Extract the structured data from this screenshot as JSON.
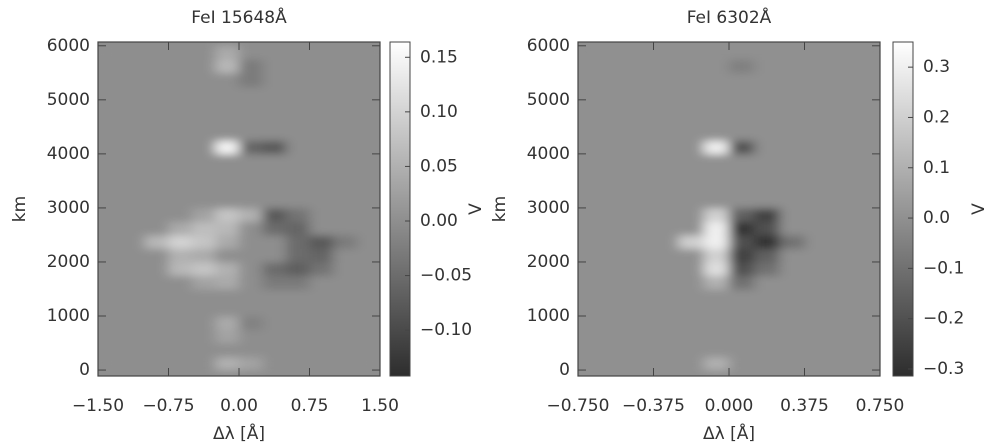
{
  "chart_data": [
    {
      "type": "heatmap",
      "title": "FeI 15648Å",
      "x_label": "Δλ [Å]",
      "y_label": "km",
      "colorbar_label": "V",
      "xlim": [
        -1.5,
        1.5
      ],
      "ylim": [
        -110,
        6070
      ],
      "xticks": [
        {
          "value": -1.5,
          "label": "−1.50"
        },
        {
          "value": -0.75,
          "label": "−0.75"
        },
        {
          "value": 0,
          "label": "0.00"
        },
        {
          "value": 0.75,
          "label": "0.75"
        },
        {
          "value": 1.5,
          "label": "1.50"
        }
      ],
      "yticks": [
        0,
        1000,
        2000,
        3000,
        4000,
        5000,
        6000
      ],
      "clim": [
        -0.142,
        0.164
      ],
      "cticks": [
        {
          "value": 0.15,
          "label": "0.15"
        },
        {
          "value": 0.1,
          "label": "0.10"
        },
        {
          "value": 0.05,
          "label": "0.05"
        },
        {
          "value": 0,
          "label": "0.00"
        },
        {
          "value": -0.05,
          "label": "−0.05"
        },
        {
          "value": -0.1,
          "label": "−0.10"
        }
      ],
      "x": [
        -1.375,
        -1.125,
        -0.875,
        -0.625,
        -0.375,
        -0.125,
        0.125,
        0.375,
        0.625,
        0.875,
        1.125,
        1.375
      ],
      "y": [
        125,
        375,
        625,
        875,
        1125,
        1375,
        1625,
        1875,
        2125,
        2375,
        2625,
        2875,
        3125,
        3375,
        3625,
        3875,
        4125,
        4375,
        4625,
        4875,
        5125,
        5375,
        5625,
        5875
      ],
      "z": [
        [
          0,
          0,
          0,
          0,
          0,
          0.05,
          0.03,
          0,
          0,
          0,
          0,
          0
        ],
        [
          0,
          0,
          0,
          0,
          0,
          0,
          0,
          0,
          0,
          0,
          0,
          0
        ],
        [
          0,
          0,
          0,
          0,
          0,
          0.03,
          0,
          0,
          0,
          0,
          0,
          0
        ],
        [
          0,
          0,
          0,
          0,
          0,
          0.04,
          -0.02,
          0,
          0,
          0,
          0,
          0
        ],
        [
          0,
          0,
          0,
          0,
          0,
          0,
          0,
          0,
          0,
          0,
          0,
          0
        ],
        [
          0,
          0,
          0,
          0,
          0,
          0,
          0,
          0,
          0,
          0,
          0,
          0
        ],
        [
          0,
          0,
          0,
          0,
          0.03,
          0.04,
          0,
          -0.03,
          -0.03,
          0,
          0,
          0
        ],
        [
          0,
          0,
          0,
          0.06,
          0.08,
          0.05,
          0,
          -0.05,
          -0.07,
          -0.04,
          0,
          0
        ],
        [
          0,
          0,
          0,
          0.05,
          0.04,
          0,
          0,
          0,
          -0.05,
          -0.06,
          0,
          0
        ],
        [
          0,
          0,
          0.06,
          0.1,
          0.08,
          0.04,
          0,
          0,
          -0.05,
          -0.08,
          -0.03,
          0
        ],
        [
          0,
          0,
          0,
          0.04,
          0.07,
          0.06,
          0,
          -0.05,
          -0.06,
          0,
          0,
          0
        ],
        [
          0,
          0,
          0,
          0,
          0.03,
          0.08,
          0.05,
          -0.08,
          -0.04,
          0,
          0,
          0
        ],
        [
          0,
          0,
          0,
          0,
          0,
          0,
          0,
          0,
          0,
          0,
          0,
          0
        ],
        [
          0,
          0,
          0,
          0,
          0,
          0,
          0,
          0,
          0,
          0,
          0,
          0
        ],
        [
          0,
          0,
          0,
          0,
          0,
          0,
          0,
          0,
          0,
          0,
          0,
          0
        ],
        [
          0,
          0,
          0,
          0,
          0,
          0,
          0,
          0,
          0,
          0,
          0,
          0
        ],
        [
          0,
          0,
          0,
          0,
          0,
          0.15,
          -0.06,
          -0.08,
          0,
          0,
          0,
          0
        ],
        [
          0,
          0,
          0,
          0,
          0,
          0,
          0,
          0,
          0,
          0,
          0,
          0
        ],
        [
          0,
          0,
          0,
          0,
          0,
          0,
          0,
          0,
          0,
          0,
          0,
          0
        ],
        [
          0,
          0,
          0,
          0,
          0,
          0,
          0,
          0,
          0,
          0,
          0,
          0
        ],
        [
          0,
          0,
          0,
          0,
          0,
          0,
          0,
          0,
          0,
          0,
          0,
          0
        ],
        [
          0,
          0,
          0,
          0,
          0,
          0,
          -0.03,
          0,
          0,
          0,
          0,
          0
        ],
        [
          0,
          0,
          0,
          0,
          0,
          0.06,
          -0.03,
          0,
          0,
          0,
          0,
          0
        ],
        [
          0,
          0,
          0,
          0,
          0,
          0.04,
          0,
          0,
          0,
          0,
          0,
          0
        ]
      ]
    },
    {
      "type": "heatmap",
      "title": "FeI 6302Å",
      "x_label": "Δλ [Å]",
      "y_label": "km",
      "colorbar_label": "V",
      "xlim": [
        -0.75,
        0.75
      ],
      "ylim": [
        -110,
        6070
      ],
      "xticks": [
        {
          "value": -0.75,
          "label": "−0.750"
        },
        {
          "value": -0.375,
          "label": "−0.375"
        },
        {
          "value": 0,
          "label": "0.000"
        },
        {
          "value": 0.375,
          "label": "0.375"
        },
        {
          "value": 0.75,
          "label": "0.750"
        }
      ],
      "yticks": [
        0,
        1000,
        2000,
        3000,
        4000,
        5000,
        6000
      ],
      "clim": [
        -0.314,
        0.35
      ],
      "cticks": [
        0.3,
        0.2,
        0.1,
        {
          "value": 0,
          "label": "0.0"
        },
        {
          "value": -0.1,
          "label": "−0.1"
        },
        {
          "value": -0.2,
          "label": "−0.2"
        },
        {
          "value": -0.3,
          "label": "−0.3"
        }
      ],
      "x": [
        -0.6875,
        -0.5625,
        -0.4375,
        -0.3125,
        -0.1875,
        -0.0625,
        0.0625,
        0.1875,
        0.3125,
        0.4375,
        0.5625,
        0.6875
      ],
      "y": [
        125,
        375,
        625,
        875,
        1125,
        1375,
        1625,
        1875,
        2125,
        2375,
        2625,
        2875,
        3125,
        3375,
        3625,
        3875,
        4125,
        4375,
        4625,
        4875,
        5125,
        5375,
        5625,
        5875
      ],
      "z": [
        [
          0,
          0,
          0,
          0,
          0,
          0.1,
          0,
          0,
          0,
          0,
          0,
          0
        ],
        [
          0,
          0,
          0,
          0,
          0,
          0,
          0,
          0,
          0,
          0,
          0,
          0
        ],
        [
          0,
          0,
          0,
          0,
          0,
          0,
          0,
          0,
          0,
          0,
          0,
          0
        ],
        [
          0,
          0,
          0,
          0,
          0,
          0,
          0,
          0,
          0,
          0,
          0,
          0
        ],
        [
          0,
          0,
          0,
          0,
          0,
          0,
          0,
          0,
          0,
          0,
          0,
          0
        ],
        [
          0,
          0,
          0,
          0,
          0,
          0,
          0,
          0,
          0,
          0,
          0,
          0
        ],
        [
          0,
          0,
          0,
          0,
          0,
          0.1,
          -0.1,
          0,
          0,
          0,
          0,
          0
        ],
        [
          0,
          0,
          0,
          0,
          0,
          0.25,
          -0.2,
          -0.1,
          0,
          0,
          0,
          0
        ],
        [
          0,
          0,
          0,
          0,
          0,
          0.2,
          -0.25,
          -0.15,
          0,
          0,
          0,
          0
        ],
        [
          0,
          0,
          0,
          0,
          0.2,
          0.3,
          -0.2,
          -0.3,
          -0.1,
          0,
          0,
          0
        ],
        [
          0,
          0,
          0,
          0,
          0,
          0.3,
          -0.3,
          -0.2,
          0,
          0,
          0,
          0
        ],
        [
          0,
          0,
          0,
          0,
          0,
          0.2,
          -0.15,
          -0.25,
          0,
          0,
          0,
          0
        ],
        [
          0,
          0,
          0,
          0,
          0,
          0,
          0,
          0,
          0,
          0,
          0,
          0
        ],
        [
          0,
          0,
          0,
          0,
          0,
          0,
          0,
          0,
          0,
          0,
          0,
          0
        ],
        [
          0,
          0,
          0,
          0,
          0,
          0,
          0,
          0,
          0,
          0,
          0,
          0
        ],
        [
          0,
          0,
          0,
          0,
          0,
          0,
          0,
          0,
          0,
          0,
          0,
          0
        ],
        [
          0,
          0,
          0,
          0,
          0,
          0.3,
          -0.2,
          0,
          0,
          0,
          0,
          0
        ],
        [
          0,
          0,
          0,
          0,
          0,
          0,
          0,
          0,
          0,
          0,
          0,
          0
        ],
        [
          0,
          0,
          0,
          0,
          0,
          0,
          0,
          0,
          0,
          0,
          0,
          0
        ],
        [
          0,
          0,
          0,
          0,
          0,
          0,
          0,
          0,
          0,
          0,
          0,
          0
        ],
        [
          0,
          0,
          0,
          0,
          0,
          0,
          0,
          0,
          0,
          0,
          0,
          0
        ],
        [
          0,
          0,
          0,
          0,
          0,
          0,
          0,
          0,
          0,
          0,
          0,
          0
        ],
        [
          0,
          0,
          0,
          0,
          0,
          0,
          -0.05,
          0,
          0,
          0,
          0,
          0
        ],
        [
          0,
          0,
          0,
          0,
          0,
          0,
          0,
          0,
          0,
          0,
          0,
          0
        ]
      ]
    }
  ]
}
